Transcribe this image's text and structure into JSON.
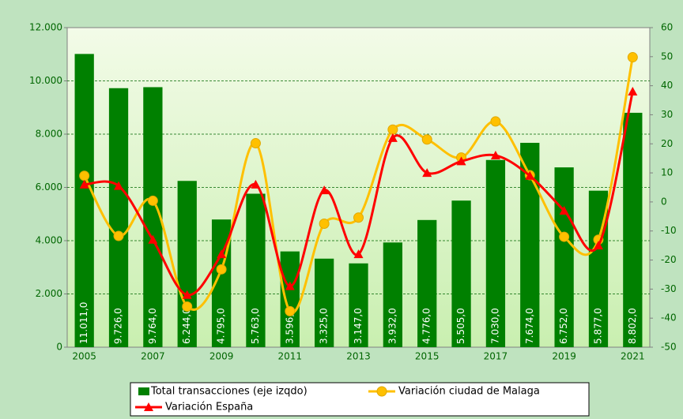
{
  "chart_data": {
    "type": "bar-line",
    "categories": [
      "2005",
      null,
      "2007",
      null,
      "2009",
      null,
      "2011",
      null,
      "2013",
      null,
      "2015",
      null,
      "2017",
      null,
      "2019",
      null,
      "2021"
    ],
    "series": [
      {
        "name": "Total transacciones (eje izqdo)",
        "type": "bar",
        "color": "#008000",
        "values": [
          11011,
          9726,
          9764,
          6244,
          4795,
          5763,
          3596,
          3325,
          3147,
          3932,
          4776,
          5505,
          7030,
          7674,
          6752,
          5877,
          8802
        ],
        "value_labels": [
          "11.011,0",
          "9.726,0",
          "9.764,0",
          "6.244,0",
          "4.795,0",
          "5.763,0",
          "3.596,0",
          "3.325,0",
          "3.147,0",
          "3.932,0",
          "4.776,0",
          "5.505,0",
          "7.030,0",
          "7.674,0",
          "6.752,0",
          "5.877,0",
          "8.802,0"
        ]
      },
      {
        "name": "Variación ciudad de Malaga",
        "type": "line",
        "axis": "y2",
        "color": "#ffc000",
        "values": [
          9,
          -11.7,
          0.4,
          -36,
          -23.2,
          20.2,
          -37.6,
          -7.5,
          -5.4,
          24.9,
          21.5,
          15.3,
          27.7,
          9.2,
          -12,
          -13,
          49.8
        ]
      },
      {
        "name": "Variación España",
        "type": "line",
        "axis": "y2",
        "color": "#ff0000",
        "values": [
          6,
          5.5,
          -13,
          -32,
          -18,
          6,
          -29,
          4,
          -18,
          22,
          10,
          14,
          16,
          9,
          -3,
          -15,
          38
        ]
      }
    ],
    "ylim": [
      0,
      12000
    ],
    "yticks": [
      0,
      {
        "value": 2000,
        "label": "2.000"
      },
      {
        "value": 4000,
        "label": "4.000"
      },
      {
        "value": 6000,
        "label": "6.000"
      },
      {
        "value": 8000,
        "label": "8.000"
      },
      {
        "value": 10000,
        "label": "10.000"
      },
      {
        "value": 12000,
        "label": "12.000"
      }
    ],
    "y2lim": [
      -50,
      60
    ],
    "y2ticks": [
      -50,
      -40,
      -30,
      -20,
      -10,
      0,
      10,
      20,
      30,
      40,
      50,
      60
    ],
    "grid": true,
    "legend": "bottom"
  }
}
